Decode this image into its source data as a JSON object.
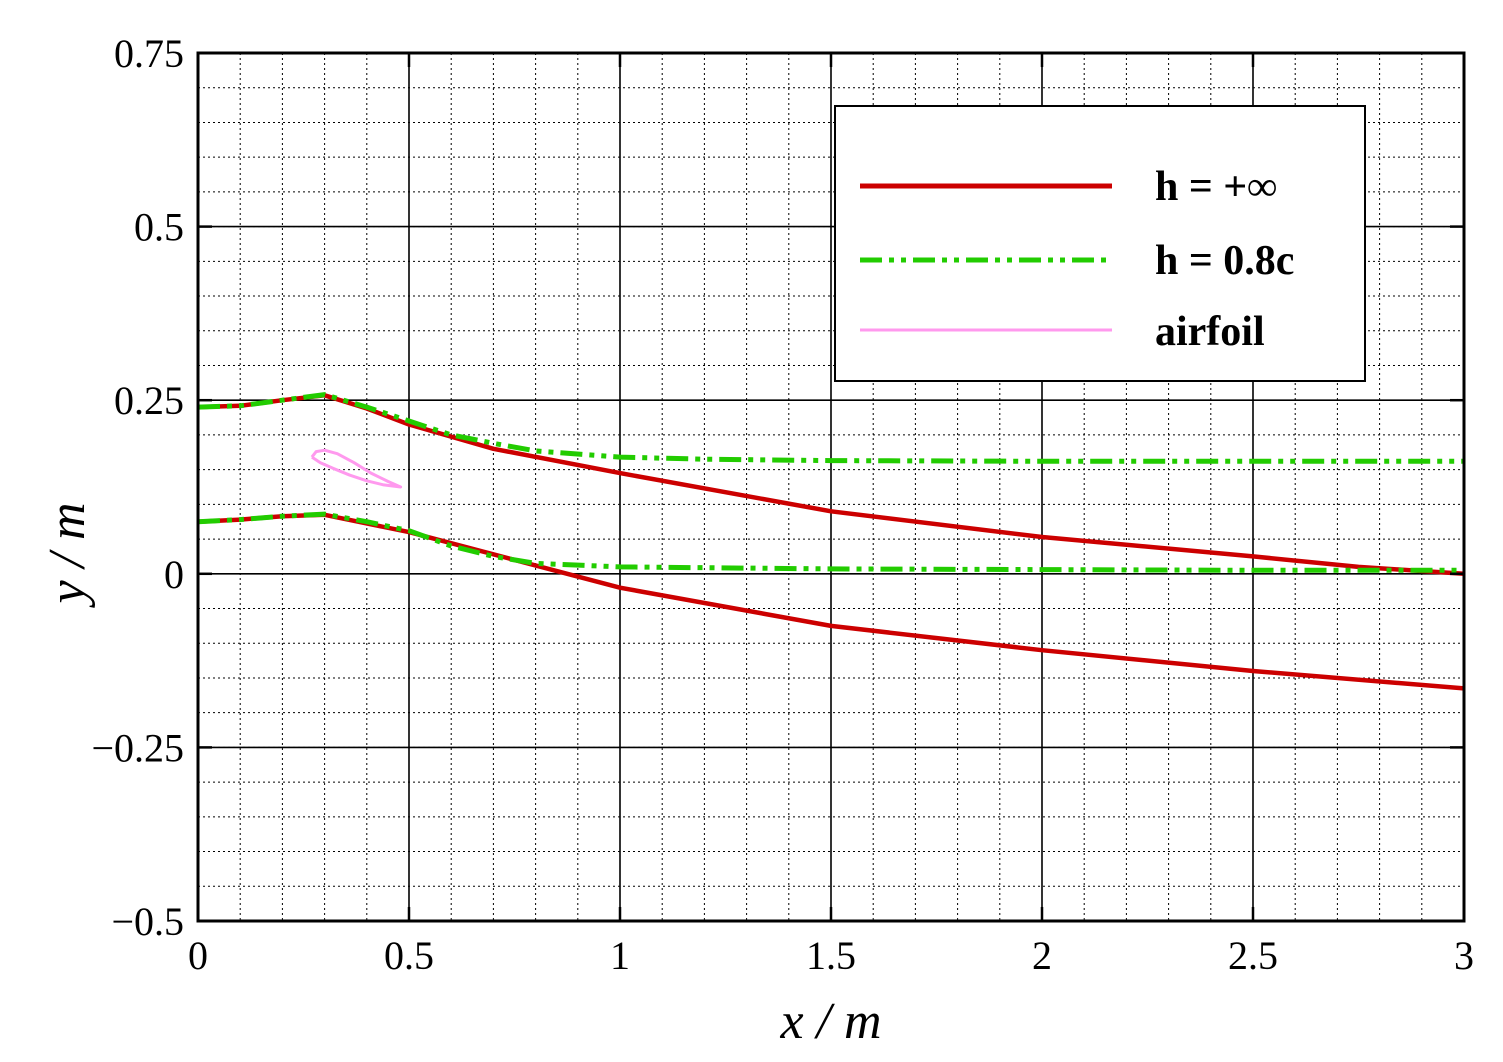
{
  "chart_data": {
    "type": "line",
    "xlabel": "x / m",
    "ylabel": "y / m",
    "xlim": [
      0,
      3
    ],
    "ylim": [
      -0.5,
      0.75
    ],
    "x_ticks": [
      0,
      0.5,
      1,
      1.5,
      2,
      2.5,
      3
    ],
    "x_tick_labels": [
      "0",
      "0.5",
      "1",
      "1.5",
      "2",
      "2.5",
      "3"
    ],
    "y_ticks": [
      -0.5,
      -0.25,
      0,
      0.25,
      0.5,
      0.75
    ],
    "y_tick_labels": [
      "−0.5",
      "−0.25",
      "0",
      "0.25",
      "0.5",
      "0.75"
    ],
    "grid": true,
    "legend_position": "top-right",
    "series": [
      {
        "name": "h = +∞",
        "color": "#cc0000",
        "style": "solid",
        "lines": [
          [
            [
              0,
              0.24
            ],
            [
              0.1,
              0.242
            ],
            [
              0.2,
              0.25
            ],
            [
              0.3,
              0.257
            ],
            [
              0.4,
              0.238
            ],
            [
              0.5,
              0.215
            ],
            [
              0.7,
              0.18
            ],
            [
              1.0,
              0.145
            ],
            [
              1.5,
              0.09
            ],
            [
              2.0,
              0.053
            ],
            [
              2.5,
              0.025
            ],
            [
              2.75,
              0.01
            ],
            [
              3.0,
              0.0
            ]
          ],
          [
            [
              0,
              0.075
            ],
            [
              0.1,
              0.078
            ],
            [
              0.2,
              0.083
            ],
            [
              0.3,
              0.085
            ],
            [
              0.5,
              0.06
            ],
            [
              0.75,
              0.02
            ],
            [
              1.0,
              -0.02
            ],
            [
              1.5,
              -0.075
            ],
            [
              2.0,
              -0.11
            ],
            [
              2.5,
              -0.14
            ],
            [
              3.0,
              -0.165
            ]
          ]
        ]
      },
      {
        "name": "h = 0.8c",
        "color": "#22cc00",
        "style": "dash-dot-dot",
        "lines": [
          [
            [
              0,
              0.24
            ],
            [
              0.1,
              0.242
            ],
            [
              0.2,
              0.25
            ],
            [
              0.3,
              0.258
            ],
            [
              0.4,
              0.24
            ],
            [
              0.5,
              0.22
            ],
            [
              0.6,
              0.2
            ],
            [
              0.7,
              0.188
            ],
            [
              0.8,
              0.177
            ],
            [
              1.0,
              0.168
            ],
            [
              1.2,
              0.165
            ],
            [
              1.5,
              0.163
            ],
            [
              2.0,
              0.162
            ],
            [
              2.5,
              0.162
            ],
            [
              3.0,
              0.162
            ]
          ],
          [
            [
              0,
              0.075
            ],
            [
              0.1,
              0.078
            ],
            [
              0.2,
              0.083
            ],
            [
              0.3,
              0.086
            ],
            [
              0.4,
              0.075
            ],
            [
              0.5,
              0.062
            ],
            [
              0.6,
              0.04
            ],
            [
              0.7,
              0.025
            ],
            [
              0.8,
              0.015
            ],
            [
              1.0,
              0.01
            ],
            [
              1.5,
              0.007
            ],
            [
              2.0,
              0.006
            ],
            [
              2.5,
              0.005
            ],
            [
              3.0,
              0.005
            ]
          ]
        ]
      },
      {
        "name": "airfoil",
        "color": "#ff99ee",
        "style": "solid-thin",
        "lines": [
          [
            [
              0.27,
              0.168
            ],
            [
              0.28,
              0.176
            ],
            [
              0.3,
              0.178
            ],
            [
              0.33,
              0.173
            ],
            [
              0.37,
              0.16
            ],
            [
              0.41,
              0.145
            ],
            [
              0.45,
              0.133
            ],
            [
              0.48,
              0.125
            ],
            [
              0.44,
              0.128
            ],
            [
              0.4,
              0.134
            ],
            [
              0.36,
              0.142
            ],
            [
              0.32,
              0.152
            ],
            [
              0.29,
              0.16
            ],
            [
              0.27,
              0.168
            ]
          ]
        ]
      }
    ]
  }
}
